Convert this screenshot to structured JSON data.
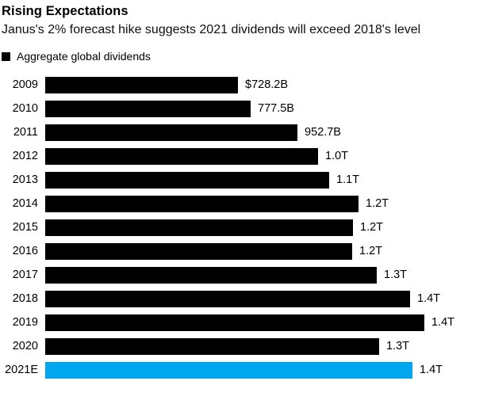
{
  "header": {
    "title": "Rising Expectations",
    "subtitle": "Janus's 2% forecast hike suggests 2021 dividends will exceed 2018's level"
  },
  "legend": {
    "label": "Aggregate global dividends",
    "swatch_color": "#000000"
  },
  "colors": {
    "bar_default": "#000000",
    "bar_forecast": "#00a6f0",
    "background": "#ffffff",
    "text": "#000000"
  },
  "chart_data": {
    "type": "bar",
    "orientation": "horizontal",
    "title": "Rising Expectations",
    "subtitle": "Janus's 2% forecast hike suggests 2021 dividends will exceed 2018's level",
    "legend_entries": [
      "Aggregate global dividends"
    ],
    "legend_position": "top-left",
    "grid": false,
    "categories": [
      "2009",
      "2010",
      "2011",
      "2012",
      "2013",
      "2014",
      "2015",
      "2016",
      "2017",
      "2018",
      "2019",
      "2020",
      "2021E"
    ],
    "values_billions_usd": [
      728.2,
      777.5,
      952.7,
      1031,
      1073,
      1184,
      1163,
      1160,
      1253,
      1379,
      1433,
      1262,
      1388
    ],
    "value_labels": [
      "$728.2B",
      "777.5B",
      "952.7B",
      "1.0T",
      "1.1T",
      "1.2T",
      "1.2T",
      "1.2T",
      "1.3T",
      "1.4T",
      "1.4T",
      "1.3T",
      "1.4T"
    ],
    "highlighted_category": "2021E",
    "xlabel": "",
    "ylabel": "",
    "xlim": [
      0,
      1433
    ]
  }
}
